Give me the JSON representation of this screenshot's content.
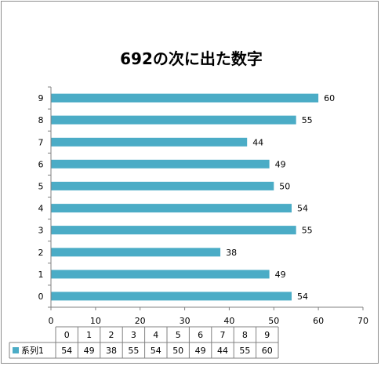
{
  "chart_data": {
    "type": "bar",
    "orientation": "horizontal",
    "title": "692の次に出た数字",
    "categories": [
      "0",
      "1",
      "2",
      "3",
      "4",
      "5",
      "6",
      "7",
      "8",
      "9"
    ],
    "series": [
      {
        "name": "系列1",
        "values": [
          54,
          49,
          38,
          55,
          54,
          50,
          49,
          44,
          55,
          60
        ]
      }
    ],
    "xlim": [
      0,
      70
    ],
    "x_ticks": [
      0,
      10,
      20,
      30,
      40,
      50,
      60,
      70
    ],
    "data_labels": true,
    "grid": false,
    "legend": "data-table",
    "colors": {
      "bar": "#4bacc6",
      "axis": "#808080",
      "table_border": "#808080"
    }
  }
}
